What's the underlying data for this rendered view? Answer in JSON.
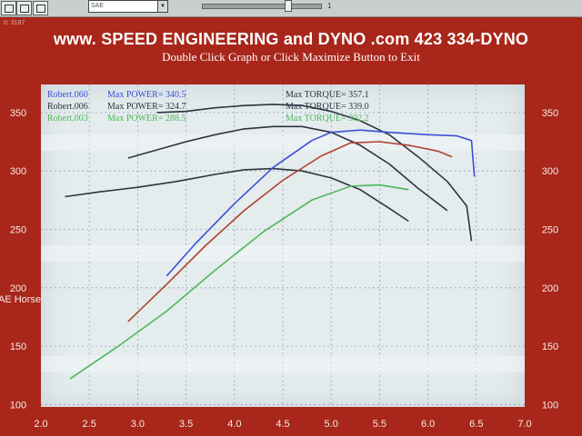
{
  "window": {
    "units_select": "SAE",
    "slider_value": "1",
    "left_code": "0: 3187"
  },
  "header": {
    "title": "www. SPEED ENGINEERING and DYNO .com    423 334-DYNO",
    "subtitle": "Double Click Graph or Click Maximize Button to Exit"
  },
  "colors": {
    "background": "#a8261a",
    "plot_bg": "#e4ecee",
    "blue": "#3b4fd6",
    "dark": "#2e3440",
    "red": "#b0412e",
    "green": "#2f5f35",
    "light_green": "#4fb85a"
  },
  "chart_data": {
    "type": "line",
    "xlabel": "",
    "ylabel": "AE Horse",
    "xlim": [
      2.0,
      7.0
    ],
    "ylim": [
      100,
      370
    ],
    "x_ticks": [
      "2.0",
      "2.5",
      "3.0",
      "3.5",
      "4.0",
      "4.5",
      "5.0",
      "5.5",
      "6.0",
      "6.5",
      "7.0"
    ],
    "y_ticks": [
      "100",
      "150",
      "200",
      "250",
      "300",
      "350"
    ],
    "legend": [
      {
        "run": "Robert.060",
        "max_power": "Max POWER= 340.5",
        "max_torque": "Max TORQUE= 357.1",
        "color": "#3b4fd6"
      },
      {
        "run": "Robert.006",
        "max_power": "Max POWER= 324.7",
        "max_torque": "Max TORQUE= 339.0",
        "color": "#2e3440"
      },
      {
        "run": "Robert.003",
        "max_power": "Max POWER= 288.5",
        "max_torque": "Max TORQUE= 302.2",
        "color": "#4fb85a"
      }
    ],
    "series": [
      {
        "kind": "torque",
        "color": "#2e3440",
        "x": [
          3.2,
          3.5,
          3.8,
          4.1,
          4.4,
          4.7,
          5.0,
          5.3,
          5.6,
          5.9,
          6.2,
          6.4,
          6.45
        ],
        "y": [
          350,
          351,
          354,
          356,
          357,
          356,
          351,
          343,
          331,
          312,
          291,
          270,
          240
        ]
      },
      {
        "kind": "torque",
        "color": "#2e3440",
        "x": [
          2.9,
          3.2,
          3.5,
          3.8,
          4.1,
          4.4,
          4.7,
          5.0,
          5.3,
          5.6,
          5.9,
          6.2
        ],
        "y": [
          311,
          318,
          325,
          331,
          336,
          338,
          338,
          333,
          322,
          306,
          285,
          266
        ]
      },
      {
        "kind": "torque",
        "color": "#2e3440",
        "x": [
          2.25,
          2.6,
          3.0,
          3.4,
          3.8,
          4.1,
          4.4,
          4.7,
          5.0,
          5.3,
          5.6,
          5.8
        ],
        "y": [
          278,
          282,
          286,
          291,
          297,
          301,
          302,
          300,
          294,
          284,
          268,
          257
        ]
      },
      {
        "kind": "power",
        "color": "#3b4fd6",
        "x": [
          3.3,
          3.6,
          4.0,
          4.4,
          4.8,
          5.0,
          5.3,
          5.6,
          6.0,
          6.3,
          6.45,
          6.48
        ],
        "y": [
          210,
          238,
          272,
          303,
          326,
          333,
          335,
          333,
          331,
          330,
          326,
          295
        ]
      },
      {
        "kind": "power",
        "color": "#b0412e",
        "x": [
          2.9,
          3.3,
          3.7,
          4.1,
          4.5,
          4.9,
          5.2,
          5.5,
          5.8,
          6.1,
          6.25
        ],
        "y": [
          171,
          203,
          236,
          266,
          292,
          313,
          324,
          325,
          322,
          317,
          312
        ]
      },
      {
        "kind": "power",
        "color": "#4fb85a",
        "x": [
          2.3,
          2.8,
          3.3,
          3.8,
          4.3,
          4.8,
          5.2,
          5.5,
          5.8
        ],
        "y": [
          122,
          150,
          180,
          215,
          248,
          275,
          287,
          288,
          284
        ]
      }
    ]
  }
}
